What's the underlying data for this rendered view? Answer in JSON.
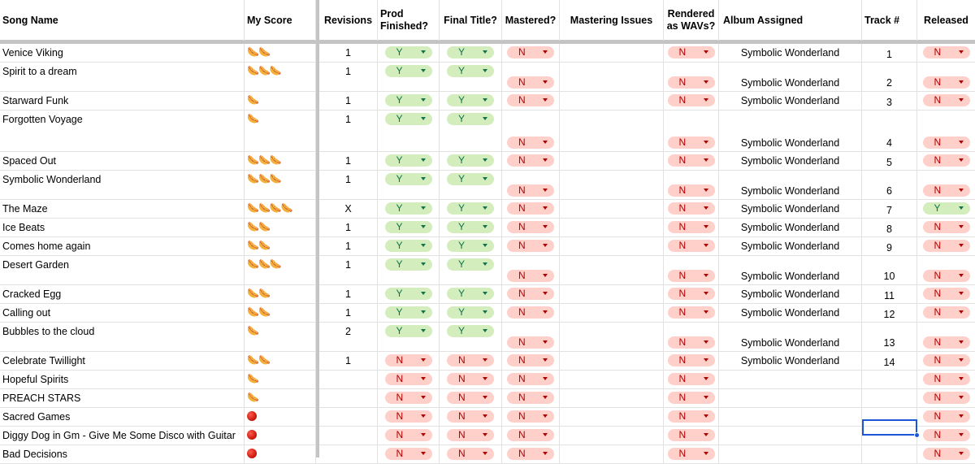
{
  "headers": {
    "song": "Song Name",
    "score": "My Score",
    "revisions": "Revisions",
    "prod": "Prod Finished?",
    "final": "Final Title?",
    "mastered": "Mastered?",
    "issues": "Mastering Issues",
    "rendered": "Rendered as WAVs?",
    "album": "Album Assigned",
    "track": "Track #",
    "released": "Released"
  },
  "icons": {
    "score_unit": "hotdog-icon",
    "score_none": "red-circle-icon"
  },
  "colors": {
    "chip_yes_bg": "#d4edbc",
    "chip_yes_fg": "#11734b",
    "chip_no_bg": "#ffcfc9",
    "chip_no_fg": "#b10202",
    "selection": "#1a56d6"
  },
  "rows": [
    {
      "song": "Venice Viking",
      "score": 2,
      "rev": "1",
      "prod": "Y",
      "final": "Y",
      "mastered": "N",
      "rendered": "N",
      "album": "Symbolic Wonderland",
      "track": "1",
      "released": "N"
    },
    {
      "song": "Spirit to a dream",
      "score": 3,
      "rev": "1",
      "prod": "Y",
      "final": "Y",
      "mastered": "N",
      "rendered": "N",
      "album": "Symbolic Wonderland",
      "track": "2",
      "released": "N"
    },
    {
      "song": "Starward Funk",
      "score": 1,
      "rev": "1",
      "prod": "Y",
      "final": "Y",
      "mastered": "N",
      "rendered": "N",
      "album": "Symbolic Wonderland",
      "track": "3",
      "released": "N"
    },
    {
      "song": "Forgotten Voyage",
      "score": 1,
      "rev": "1",
      "prod": "Y",
      "final": "Y",
      "mastered": "N",
      "rendered": "N",
      "album": "Symbolic Wonderland",
      "track": "4",
      "released": "N"
    },
    {
      "song": "Spaced Out",
      "score": 3,
      "rev": "1",
      "prod": "Y",
      "final": "Y",
      "mastered": "N",
      "rendered": "N",
      "album": "Symbolic Wonderland",
      "track": "5",
      "released": "N"
    },
    {
      "song": "Symbolic Wonderland",
      "score": 3,
      "rev": "1",
      "prod": "Y",
      "final": "Y",
      "mastered": "N",
      "rendered": "N",
      "album": "Symbolic Wonderland",
      "track": "6",
      "released": "N"
    },
    {
      "song": "The Maze",
      "score": 4,
      "rev": "X",
      "prod": "Y",
      "final": "Y",
      "mastered": "N",
      "rendered": "N",
      "album": "Symbolic Wonderland",
      "track": "7",
      "released": "Y"
    },
    {
      "song": "Ice Beats",
      "score": 2,
      "rev": "1",
      "prod": "Y",
      "final": "Y",
      "mastered": "N",
      "rendered": "N",
      "album": "Symbolic Wonderland",
      "track": "8",
      "released": "N"
    },
    {
      "song": "Comes home again",
      "score": 2,
      "rev": "1",
      "prod": "Y",
      "final": "Y",
      "mastered": "N",
      "rendered": "N",
      "album": "Symbolic Wonderland",
      "track": "9",
      "released": "N"
    },
    {
      "song": "Desert Garden",
      "score": 3,
      "rev": "1",
      "prod": "Y",
      "final": "Y",
      "mastered": "N",
      "rendered": "N",
      "album": "Symbolic Wonderland",
      "track": "10",
      "released": "N"
    },
    {
      "song": "Cracked Egg",
      "score": 2,
      "rev": "1",
      "prod": "Y",
      "final": "Y",
      "mastered": "N",
      "rendered": "N",
      "album": "Symbolic Wonderland",
      "track": "11",
      "released": "N"
    },
    {
      "song": "Calling out",
      "score": 2,
      "rev": "1",
      "prod": "Y",
      "final": "Y",
      "mastered": "N",
      "rendered": "N",
      "album": "Symbolic Wonderland",
      "track": "12",
      "released": "N"
    },
    {
      "song": "Bubbles to the cloud",
      "score": 1,
      "rev": "2",
      "prod": "Y",
      "final": "Y",
      "mastered": "N",
      "rendered": "N",
      "album": "Symbolic Wonderland",
      "track": "13",
      "released": "N"
    },
    {
      "song": "Celebrate Twillight",
      "score": 2,
      "rev": "1",
      "prod": "N",
      "final": "N",
      "mastered": "N",
      "rendered": "N",
      "album": "Symbolic Wonderland",
      "track": "14",
      "released": "N"
    },
    {
      "song": "Hopeful Spirits",
      "score": 1,
      "rev": "",
      "prod": "N",
      "final": "N",
      "mastered": "N",
      "rendered": "N",
      "album": "",
      "track": "",
      "released": "N"
    },
    {
      "song": "PREACH STARS",
      "score": 1,
      "rev": "",
      "prod": "N",
      "final": "N",
      "mastered": "N",
      "rendered": "N",
      "album": "",
      "track": "",
      "released": "N"
    },
    {
      "song": "Sacred Games",
      "score": 0,
      "rev": "",
      "prod": "N",
      "final": "N",
      "mastered": "N",
      "rendered": "N",
      "album": "",
      "track": "",
      "released": "N"
    },
    {
      "song": "Diggy Dog in Gm - Give Me Some Disco with Guitar",
      "score": 0,
      "rev": "",
      "prod": "N",
      "final": "N",
      "mastered": "N",
      "rendered": "N",
      "album": "",
      "track": "",
      "released": "N"
    },
    {
      "song": "Bad Decisions",
      "score": 0,
      "rev": "",
      "prod": "N",
      "final": "N",
      "mastered": "N",
      "rendered": "N",
      "album": "",
      "track": "",
      "released": "N"
    }
  ]
}
